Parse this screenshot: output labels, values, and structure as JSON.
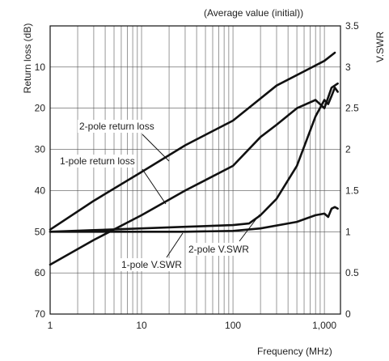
{
  "chart_data": {
    "type": "line",
    "subtitle": "(Average value (initial))",
    "xlabel": "Frequency (MHz)",
    "ylabel_left": "Return loss (dB)",
    "ylabel_right": "V.SWR",
    "x_scale": "log",
    "xlim": [
      1,
      1500
    ],
    "x_ticks": [
      1,
      10,
      100,
      1000
    ],
    "x_tick_labels": [
      "1",
      "10",
      "100",
      "1,000"
    ],
    "ylim_left": [
      0,
      70
    ],
    "y_left_inverted": true,
    "y_left_ticks": [
      10,
      20,
      30,
      40,
      50,
      60,
      70
    ],
    "y_left_tick_labels": [
      "10",
      "20",
      "30",
      "40",
      "50",
      "60",
      "70"
    ],
    "ylim_right": [
      0,
      3.5
    ],
    "y_right_ticks": [
      0,
      0.5,
      1,
      1.5,
      2,
      2.5,
      3,
      3.5
    ],
    "y_right_tick_labels": [
      "0",
      "0.5",
      "1",
      "1.5",
      "2",
      "2.5",
      "3",
      "3.5"
    ],
    "grid": true,
    "series": [
      {
        "name": "2-pole return loss",
        "axis": "left",
        "x": [
          1,
          3,
          10,
          30,
          100,
          300,
          1000,
          1300
        ],
        "y": [
          49.5,
          42.5,
          35.5,
          29,
          23,
          14.5,
          8.5,
          6.5
        ]
      },
      {
        "name": "1-pole return loss",
        "axis": "left",
        "x": [
          1,
          3,
          10,
          30,
          100,
          200,
          300,
          500,
          800,
          1000,
          1200,
          1400
        ],
        "y": [
          58,
          52,
          46,
          40,
          34,
          27,
          24,
          20,
          18,
          20,
          15,
          14
        ]
      },
      {
        "name": "2-pole V.SWR",
        "axis": "right",
        "x": [
          1,
          3,
          10,
          30,
          100,
          150,
          200,
          300,
          500,
          800,
          1000,
          1100,
          1200,
          1300,
          1400
        ],
        "y": [
          1.0,
          1.02,
          1.04,
          1.06,
          1.08,
          1.1,
          1.2,
          1.4,
          1.8,
          2.4,
          2.6,
          2.55,
          2.65,
          2.75,
          2.7
        ]
      },
      {
        "name": "1-pole V.SWR",
        "axis": "right",
        "x": [
          1,
          3,
          10,
          30,
          100,
          200,
          500,
          800,
          1000,
          1100,
          1200,
          1300,
          1400
        ],
        "y": [
          1.0,
          1.0,
          1.0,
          1.0,
          1.01,
          1.04,
          1.12,
          1.2,
          1.22,
          1.18,
          1.28,
          1.3,
          1.28
        ]
      }
    ]
  }
}
